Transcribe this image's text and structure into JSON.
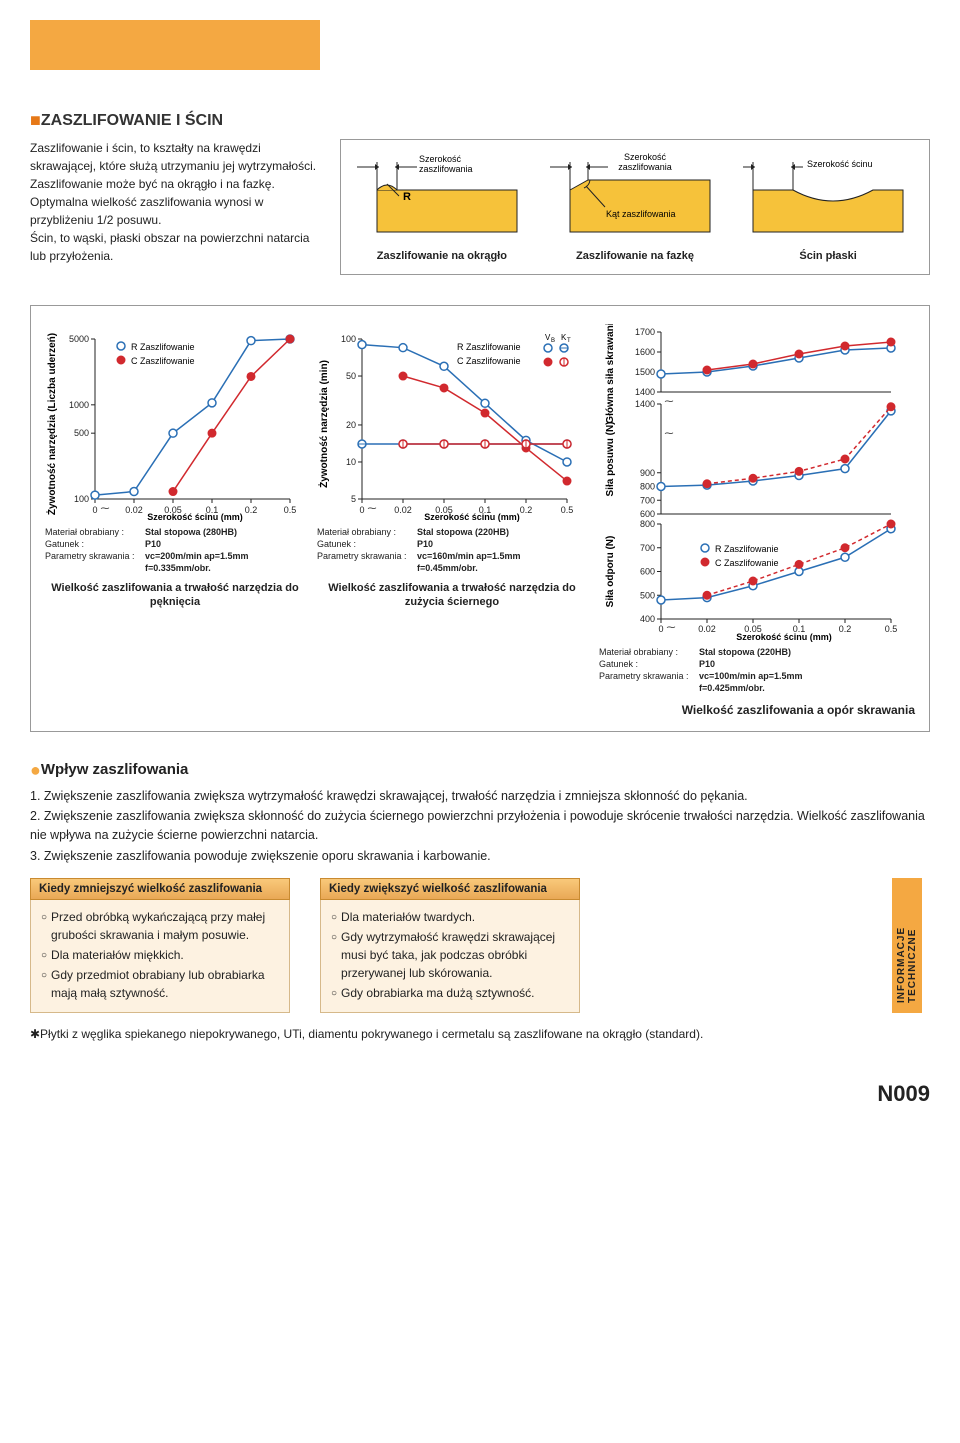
{
  "header_block_color": "#f4a842",
  "title": "ZASZLIFOWANIE I ŚCIN",
  "intro_p1": "Zaszlifowanie i ścin, to kształty na krawędzi skrawającej, które służą utrzymaniu jej wytrzymałości.",
  "intro_p2": "Zaszlifowanie może być na okrągło i na fazkę. Optymalna wielkość zaszlifowania wynosi w przybliżeniu 1/2 posuwu.",
  "intro_p3": "Ścin, to wąski, płaski obszar na powierzchni natarcia lub przyłożenia.",
  "diagrams": {
    "round": {
      "top_label": "Szerokość\nzaszlifowania",
      "r_label": "R",
      "caption": "Zaszlifowanie na okrągło"
    },
    "chamfer": {
      "top_label": "Szerokość\nzaszlifowania",
      "angle_label": "Kąt zaszlifowania",
      "caption": "Zaszlifowanie na fazkę"
    },
    "land": {
      "top_label": "Szerokość ścinu",
      "caption": "Ścin płaski"
    },
    "fill": "#f6c23a",
    "line": "#222"
  },
  "chart1": {
    "ylabel": "Żywotność narzędzia (Liczba uderzeń)",
    "xlabel": "Szerokość ścinu (mm)",
    "yticks": [
      "100",
      "500",
      "1000",
      "5000"
    ],
    "xticks": [
      "0",
      "0.02",
      "0.05",
      "0.1",
      "0.2",
      "0.5"
    ],
    "legend_r": "R Zaszlifowanie",
    "legend_c": "C Zaszlifowanie",
    "r_pts": [
      [
        0,
        110
      ],
      [
        0.02,
        120
      ],
      [
        0.05,
        500
      ],
      [
        0.1,
        1050
      ],
      [
        0.2,
        4800
      ],
      [
        0.5,
        5000
      ]
    ],
    "c_pts": [
      [
        0.05,
        120
      ],
      [
        0.1,
        500
      ],
      [
        0.2,
        2000
      ],
      [
        0.5,
        5000
      ]
    ],
    "meta": {
      "material_k": "Materiał obrabiany :",
      "material_v": "Stal stopowa (280HB)",
      "grade_k": "Gatunek :",
      "grade_v": "P10",
      "param_k": "Parametry skrawania :",
      "param_v": "vc=200m/min  ap=1.5mm",
      "param_v2": "f=0.335mm/obr."
    },
    "caption": "Wielkość zaszlifowania a trwałość narzędzia do pęknięcia"
  },
  "chart2": {
    "ylabel": "Żywotność narzędzia (min)",
    "xlabel": "Szerokość ścinu (mm)",
    "yticks": [
      "5",
      "10",
      "20",
      "50",
      "100"
    ],
    "xticks": [
      "0",
      "0.02",
      "0.05",
      "0.1",
      "0.2",
      "0.5"
    ],
    "legend_r": "R Zaszlifowanie",
    "legend_c": "C Zaszlifowanie",
    "legend_vb": "VB",
    "legend_kt": "KT",
    "r_vb": [
      [
        0,
        90
      ],
      [
        0.02,
        85
      ],
      [
        0.05,
        60
      ],
      [
        0.1,
        30
      ],
      [
        0.2,
        15
      ],
      [
        0.5,
        10
      ]
    ],
    "r_kt": [
      [
        0,
        14
      ],
      [
        0.02,
        14
      ],
      [
        0.05,
        14
      ],
      [
        0.1,
        14
      ],
      [
        0.2,
        14
      ],
      [
        0.5,
        14
      ]
    ],
    "c_vb": [
      [
        0.02,
        50
      ],
      [
        0.05,
        40
      ],
      [
        0.1,
        25
      ],
      [
        0.2,
        13
      ],
      [
        0.5,
        7
      ]
    ],
    "c_kt": [
      [
        0.02,
        14
      ],
      [
        0.05,
        14
      ],
      [
        0.1,
        14
      ],
      [
        0.2,
        14
      ],
      [
        0.5,
        14
      ]
    ],
    "meta": {
      "material_k": "Materiał obrabiany :",
      "material_v": "Stal stopowa (220HB)",
      "grade_k": "Gatunek :",
      "grade_v": "P10",
      "param_k": "Parametry skrawania :",
      "param_v": "vc=160m/min  ap=1.5mm",
      "param_v2": "f=0.45mm/obr."
    },
    "caption": "Wielkość zaszlifowania a trwałość narzędzia do zużycia ściernego"
  },
  "chart3": {
    "ylabel_top": "Główna siła skrawania (N)",
    "ylabel_mid": "Siła posuwu (N)",
    "ylabel_bot": "Siła odporu (N)",
    "xlabel": "Szerokość ścinu (mm)",
    "xticks": [
      "0",
      "0.02",
      "0.05",
      "0.1",
      "0.2",
      "0.5"
    ],
    "top_yticks": [
      "1400",
      "1500",
      "1600",
      "1700"
    ],
    "mid_yticks": [
      "600",
      "700",
      "800",
      "900",
      "1400"
    ],
    "bot_yticks": [
      "400",
      "500",
      "600",
      "700",
      "800"
    ],
    "legend_r": "R Zaszlifowanie",
    "legend_c": "C Zaszlifowanie",
    "top_r": [
      [
        0,
        1490
      ],
      [
        0.02,
        1500
      ],
      [
        0.05,
        1530
      ],
      [
        0.1,
        1570
      ],
      [
        0.2,
        1610
      ],
      [
        0.5,
        1620
      ]
    ],
    "top_c": [
      [
        0.02,
        1510
      ],
      [
        0.05,
        1540
      ],
      [
        0.1,
        1590
      ],
      [
        0.2,
        1630
      ],
      [
        0.5,
        1650
      ]
    ],
    "mid_r": [
      [
        0,
        800
      ],
      [
        0.02,
        810
      ],
      [
        0.05,
        840
      ],
      [
        0.1,
        880
      ],
      [
        0.2,
        930
      ],
      [
        0.5,
        1350
      ]
    ],
    "mid_c": [
      [
        0.02,
        820
      ],
      [
        0.05,
        860
      ],
      [
        0.1,
        910
      ],
      [
        0.2,
        1000
      ],
      [
        0.5,
        1380
      ]
    ],
    "bot_r": [
      [
        0,
        480
      ],
      [
        0.02,
        490
      ],
      [
        0.05,
        540
      ],
      [
        0.1,
        600
      ],
      [
        0.2,
        660
      ],
      [
        0.5,
        780
      ]
    ],
    "bot_c": [
      [
        0.02,
        500
      ],
      [
        0.05,
        560
      ],
      [
        0.1,
        630
      ],
      [
        0.2,
        700
      ],
      [
        0.5,
        800
      ]
    ],
    "meta": {
      "material_k": "Materiał obrabiany :",
      "material_v": "Stal stopowa (220HB)",
      "grade_k": "Gatunek :",
      "grade_v": "P10",
      "param_k": "Parametry skrawania :",
      "param_v": "vc=100m/min  ap=1.5mm",
      "param_v2": "f=0.425mm/obr."
    },
    "caption": "Wielkość zaszlifowania a opór skrawania"
  },
  "effect": {
    "title": "Wpływ zaszlifowania",
    "items": [
      "1. Zwiększenie zaszlifowania zwiększa wytrzymałość krawędzi skrawającej, trwałość narzędzia i zmniejsza skłonność do pękania.",
      "2. Zwiększenie zaszlifowania zwiększa skłonność do zużycia ściernego powierzchni przyłożenia i powoduje skrócenie trwałości narzędzia. Wielkość zaszlifowania nie wpływa na zużycie ścierne powierzchni natarcia.",
      "3. Zwiększenie zaszlifowania powoduje zwiększenie oporu skrawania i karbowanie."
    ]
  },
  "reduce": {
    "head": "Kiedy zmniejszyć wielkość zaszlifowania",
    "items": [
      "Przed obróbką wykańczającą przy małej grubości skrawania i małym posuwie.",
      "Dla materiałów miękkich.",
      "Gdy przedmiot obrabiany lub obrabiarka mają małą sztywność."
    ]
  },
  "increase": {
    "head": "Kiedy zwiększyć wielkość zaszlifowania",
    "items": [
      "Dla materiałów twardych.",
      "Gdy wytrzymałość krawędzi skrawającej musi być taka, jak podczas obróbki przerywanej lub skórowania.",
      "Gdy obrabiarka ma dużą sztywność."
    ]
  },
  "side_tab": "INFORMACJE TECHNICZNE",
  "footnote": "✱Płytki z węglika spiekanego niepokrywanego, UTi, diamentu pokrywanego i cermetalu są zaszlifowane na okrągło (standard).",
  "page_num": "N009"
}
